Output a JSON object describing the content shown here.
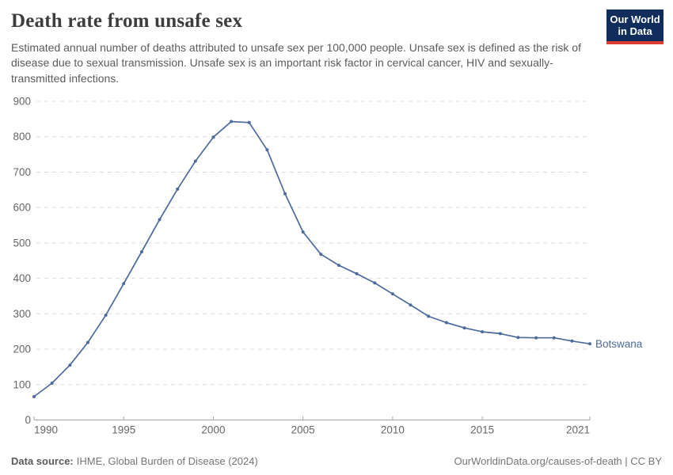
{
  "header": {
    "title": "Death rate from unsafe sex",
    "subtitle": "Estimated annual number of deaths attributed to unsafe sex per 100,000 people. Unsafe sex is defined as the risk of disease due to sexual transmission. Unsafe sex is an important risk factor in cervical cancer, HIV and sexually-transmitted infections."
  },
  "logo": {
    "line1": "Our World",
    "line2": "in Data",
    "bg_color": "#112d5c",
    "accent_color": "#dc3e32"
  },
  "chart_data": {
    "type": "line",
    "title": "Death rate from unsafe sex",
    "x": [
      1990,
      1991,
      1992,
      1993,
      1994,
      1995,
      1996,
      1997,
      1998,
      1999,
      2000,
      2001,
      2002,
      2003,
      2004,
      2005,
      2006,
      2007,
      2008,
      2009,
      2010,
      2011,
      2012,
      2013,
      2014,
      2015,
      2016,
      2017,
      2018,
      2019,
      2020,
      2021
    ],
    "series": [
      {
        "name": "Botswana",
        "color": "#4c6a9c",
        "values": [
          66,
          104,
          155,
          219,
          296,
          385,
          475,
          566,
          652,
          731,
          799,
          843,
          840,
          763,
          639,
          531,
          468,
          437,
          413,
          387,
          356,
          325,
          293,
          275,
          260,
          249,
          244,
          233,
          232,
          232,
          223,
          215
        ]
      }
    ],
    "xlabel": "",
    "ylabel": "",
    "ylim": [
      0,
      900
    ],
    "yticks": [
      0,
      100,
      200,
      300,
      400,
      500,
      600,
      700,
      800,
      900
    ],
    "xticks": [
      1990,
      1995,
      2000,
      2005,
      2010,
      2015,
      2021
    ],
    "grid": "horizontal-dashed",
    "legend_position": "end-of-line-label",
    "colors": {
      "grid": "#dcdcdc",
      "axis": "#a6a6a6",
      "tick_label": "#666666"
    }
  },
  "footer": {
    "source_label": "Data source:",
    "source_text": "IHME, Global Burden of Disease (2024)",
    "credit": "OurWorldinData.org/causes-of-death | CC BY"
  }
}
